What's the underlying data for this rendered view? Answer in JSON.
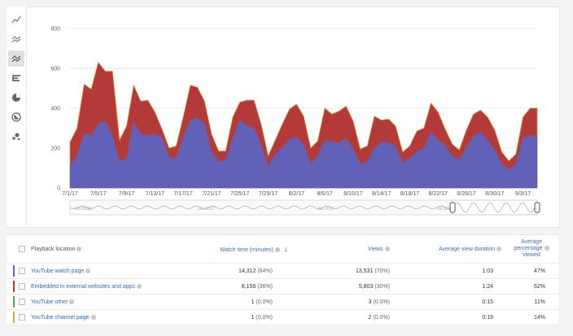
{
  "chart_data": {
    "type": "area",
    "stacked": true,
    "x": [
      "7/1/17",
      "7/2/17",
      "7/3/17",
      "7/4/17",
      "7/5/17",
      "7/6/17",
      "7/7/17",
      "7/8/17",
      "7/9/17",
      "7/10/17",
      "7/11/17",
      "7/12/17",
      "7/13/17",
      "7/14/17",
      "7/15/17",
      "7/16/17",
      "7/17/17",
      "7/18/17",
      "7/19/17",
      "7/20/17",
      "7/21/17",
      "7/22/17",
      "7/23/17",
      "7/24/17",
      "7/25/17",
      "7/26/17",
      "7/27/17",
      "7/28/17",
      "7/29/17",
      "7/30/17",
      "7/31/17",
      "8/1/17",
      "8/2/17",
      "8/3/17",
      "8/4/17",
      "8/5/17",
      "8/6/17",
      "8/7/17",
      "8/8/17",
      "8/9/17",
      "8/10/17",
      "8/11/17",
      "8/12/17",
      "8/13/17",
      "8/14/17",
      "8/15/17",
      "8/16/17",
      "8/17/17",
      "8/18/17",
      "8/19/17",
      "8/20/17",
      "8/21/17",
      "8/22/17",
      "8/23/17",
      "8/24/17",
      "8/25/17",
      "8/26/17",
      "8/27/17",
      "8/28/17",
      "8/29/17",
      "8/30/17",
      "8/31/17",
      "9/1/17",
      "9/2/17",
      "9/3/17",
      "9/4/17",
      "9/5/17"
    ],
    "series": [
      {
        "name": "YouTube watch page",
        "color": "#6161b8",
        "values": [
          110,
          160,
          270,
          265,
          320,
          335,
          260,
          130,
          150,
          330,
          270,
          265,
          270,
          250,
          150,
          150,
          255,
          340,
          350,
          320,
          180,
          135,
          135,
          250,
          340,
          310,
          300,
          210,
          110,
          170,
          200,
          245,
          255,
          215,
          120,
          160,
          240,
          230,
          225,
          250,
          195,
          120,
          130,
          200,
          230,
          225,
          210,
          125,
          150,
          180,
          200,
          280,
          240,
          210,
          160,
          140,
          200,
          260,
          280,
          240,
          190,
          120,
          90,
          120,
          250,
          260,
          260
        ]
      },
      {
        "name": "Embedded in external websites and apps",
        "color": "#b43a3a",
        "values": [
          120,
          140,
          250,
          230,
          310,
          250,
          325,
          110,
          160,
          185,
          165,
          175,
          110,
          45,
          50,
          60,
          100,
          175,
          155,
          115,
          90,
          50,
          50,
          105,
          90,
          130,
          140,
          110,
          50,
          70,
          120,
          150,
          165,
          145,
          80,
          75,
          160,
          140,
          160,
          160,
          140,
          75,
          80,
          160,
          110,
          120,
          100,
          55,
          60,
          105,
          100,
          145,
          140,
          85,
          60,
          50,
          90,
          110,
          110,
          115,
          100,
          60,
          45,
          50,
          105,
          140,
          140
        ]
      }
    ],
    "ylim": [
      0,
      800
    ],
    "yticks": [
      0,
      200,
      400,
      600,
      800
    ],
    "xtick_labels": [
      "7/1/17",
      "7/5/17",
      "7/9/17",
      "7/13/17",
      "7/17/17",
      "7/21/17",
      "7/25/17",
      "7/29/17",
      "8/2/17",
      "8/6/17",
      "8/10/17",
      "8/14/17",
      "8/18/17",
      "8/22/17",
      "8/26/17",
      "8/30/17",
      "9/3/17"
    ],
    "grid": true
  },
  "timeline": {
    "labels": [
      "Oct 2015",
      "Jan 2017",
      "Apr 2017",
      "Jul 2017"
    ]
  },
  "toolbar": {
    "icons": [
      "line-chart-icon",
      "multi-line-icon",
      "stacked-area-icon",
      "bar-chart-icon",
      "pie-chart-icon",
      "map-icon",
      "bubble-chart-icon"
    ]
  },
  "table": {
    "headers": {
      "location": "Playback location",
      "watch_time": "Watch time (minutes)",
      "views": "Views",
      "avg_duration": "Average view duration",
      "avg_pct_l1": "Average",
      "avg_pct_l2": "percentage",
      "avg_pct_l3": "viewed"
    },
    "rows": [
      {
        "name": "YouTube watch page",
        "color": "#6161b8",
        "watch": "14,312",
        "watch_pct": "(64%)",
        "views": "13,531",
        "views_pct": "(70%)",
        "duration": "1:03",
        "pct": "47%"
      },
      {
        "name": "Embedded in external websites and apps",
        "color": "#b43a3a",
        "watch": "8,156",
        "watch_pct": "(36%)",
        "views": "5,803",
        "views_pct": "(30%)",
        "duration": "1:24",
        "pct": "62%"
      },
      {
        "name": "YouTube other",
        "color": "#4caf50",
        "watch": "1",
        "watch_pct": "(0.0%)",
        "views": "3",
        "views_pct": "(0.0%)",
        "duration": "0:15",
        "pct": "11%"
      },
      {
        "name": "YouTube channel page",
        "color": "#e6a23c",
        "watch": "1",
        "watch_pct": "(0.0%)",
        "views": "2",
        "views_pct": "(0.0%)",
        "duration": "0:19",
        "pct": "14%"
      }
    ]
  }
}
